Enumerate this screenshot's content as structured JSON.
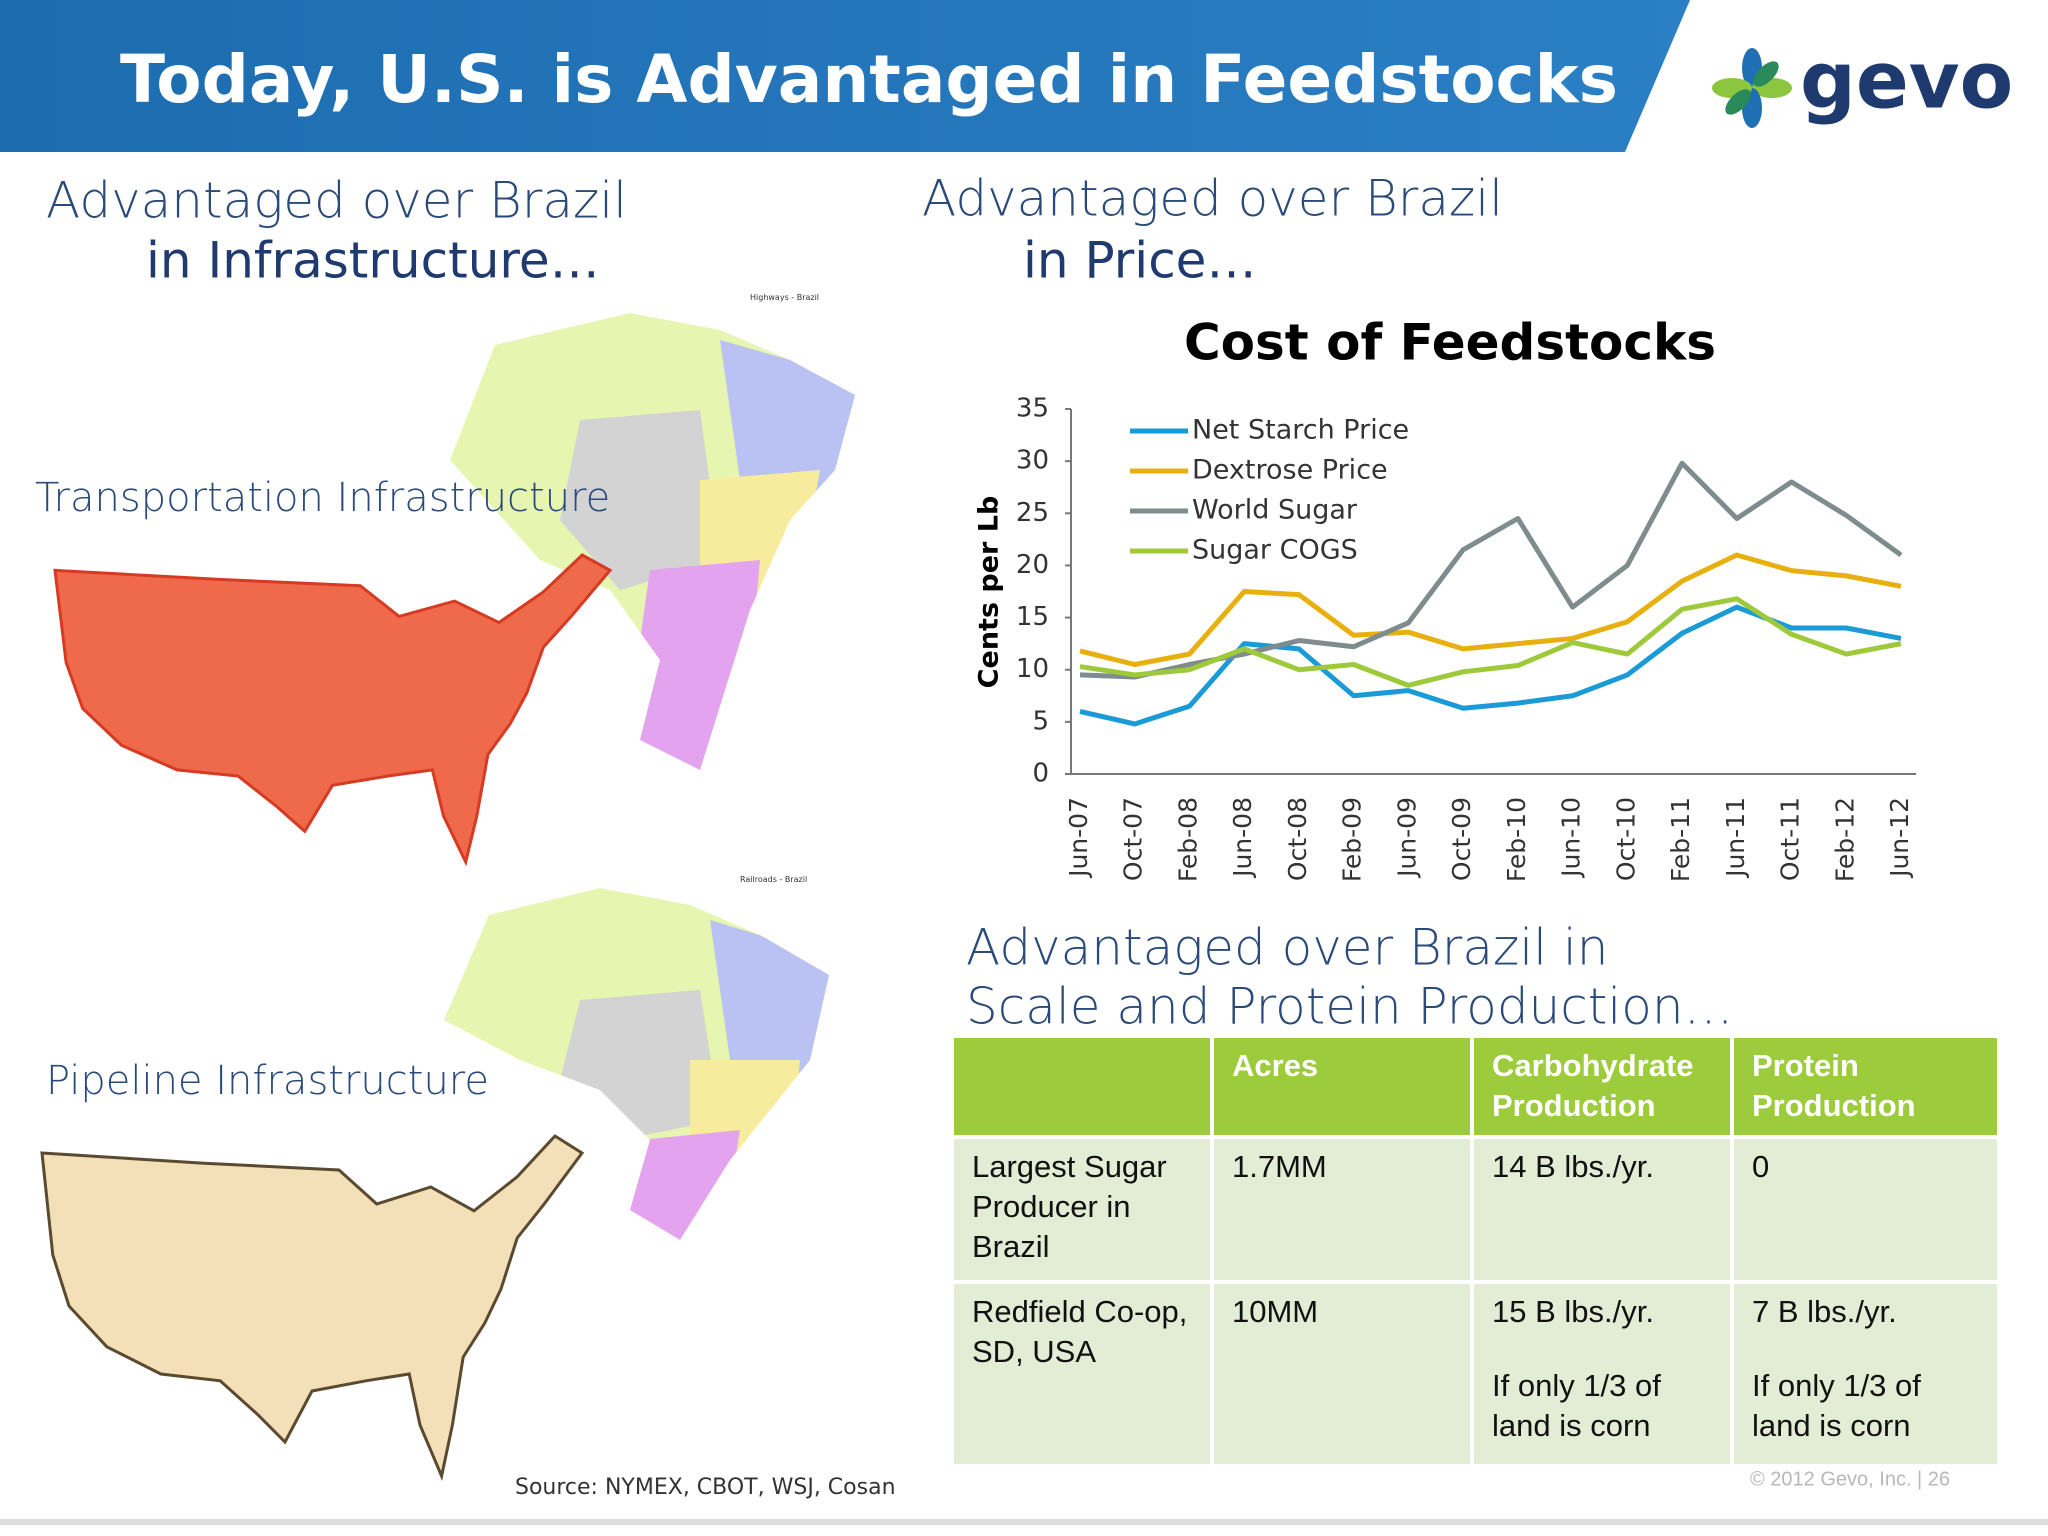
{
  "header": {
    "title": "Today, U.S. is Advantaged in Feedstocks",
    "logo": "gevo"
  },
  "infrastructure": {
    "heading": "Advantaged over Brazil",
    "subheading": "in Infrastructure…",
    "transport_label": "Transportation Infrastructure",
    "pipeline_label": "Pipeline Infrastructure",
    "map_caption_1": "Highways - Brazil",
    "map_caption_2": "Railroads - Brazil"
  },
  "price": {
    "heading": "Advantaged over Brazil",
    "subheading": "in Price…"
  },
  "chart_data": {
    "type": "line",
    "title": "Cost of Feedstocks",
    "y_label": "Cents per Lb",
    "categories": [
      "Jun-07",
      "Oct-07",
      "Feb-08",
      "Jun-08",
      "Oct-08",
      "Feb-09",
      "Jun-09",
      "Oct-09",
      "Feb-10",
      "Jun-10",
      "Oct-10",
      "Feb-11",
      "Jun-11",
      "Oct-11",
      "Feb-12",
      "Jun-12"
    ],
    "ylim": [
      0,
      35
    ],
    "yticks": [
      0,
      5,
      10,
      15,
      20,
      25,
      30,
      35
    ],
    "legend": "top-left",
    "series": [
      {
        "name": "Net Starch Price",
        "color": "#1a9ad6",
        "values": [
          6,
          4.8,
          6.5,
          12.5,
          12,
          7.5,
          8,
          6.3,
          6.8,
          7.5,
          9.5,
          13.5,
          16,
          14,
          14,
          13
        ]
      },
      {
        "name": "Dextrose Price",
        "color": "#e8b00f",
        "values": [
          11.8,
          10.5,
          11.5,
          17.5,
          17.2,
          13.3,
          13.6,
          12,
          12.5,
          13,
          14.6,
          18.5,
          21,
          19.5,
          19,
          18
        ]
      },
      {
        "name": "World Sugar",
        "color": "#7f8c8d",
        "values": [
          9.5,
          9.3,
          10.5,
          11.5,
          12.8,
          12.2,
          14.5,
          21.5,
          24.5,
          16,
          20,
          29.8,
          24.5,
          28,
          24.8,
          21
        ]
      },
      {
        "name": "Sugar COGS",
        "color": "#9dc93b",
        "values": [
          10.3,
          9.5,
          10,
          12,
          10,
          10.5,
          8.5,
          9.8,
          10.4,
          12.6,
          11.5,
          15.8,
          16.8,
          13.4,
          11.5,
          12.5
        ]
      }
    ]
  },
  "scale": {
    "heading_1": "Advantaged over Brazil in",
    "heading_2": "Scale and Protein Production…"
  },
  "table": {
    "header": [
      "Acres",
      "Carbohydrate Production",
      "Protein Production"
    ],
    "rows": [
      [
        "Largest Sugar Producer in Brazil",
        "1.7MM",
        "14 B lbs./yr.",
        "0"
      ],
      [
        "Redfield Co-op, SD, USA",
        "10MM",
        "15 B lbs./yr.",
        "7 B lbs./yr."
      ]
    ],
    "row_notes": [
      "If only 1/3 of land is corn",
      "If only 1/3 of land is corn"
    ]
  },
  "footer": {
    "source": "Source: NYMEX, CBOT, WSJ, Cosan",
    "copyright": "© 2012 Gevo, Inc. | 26"
  }
}
